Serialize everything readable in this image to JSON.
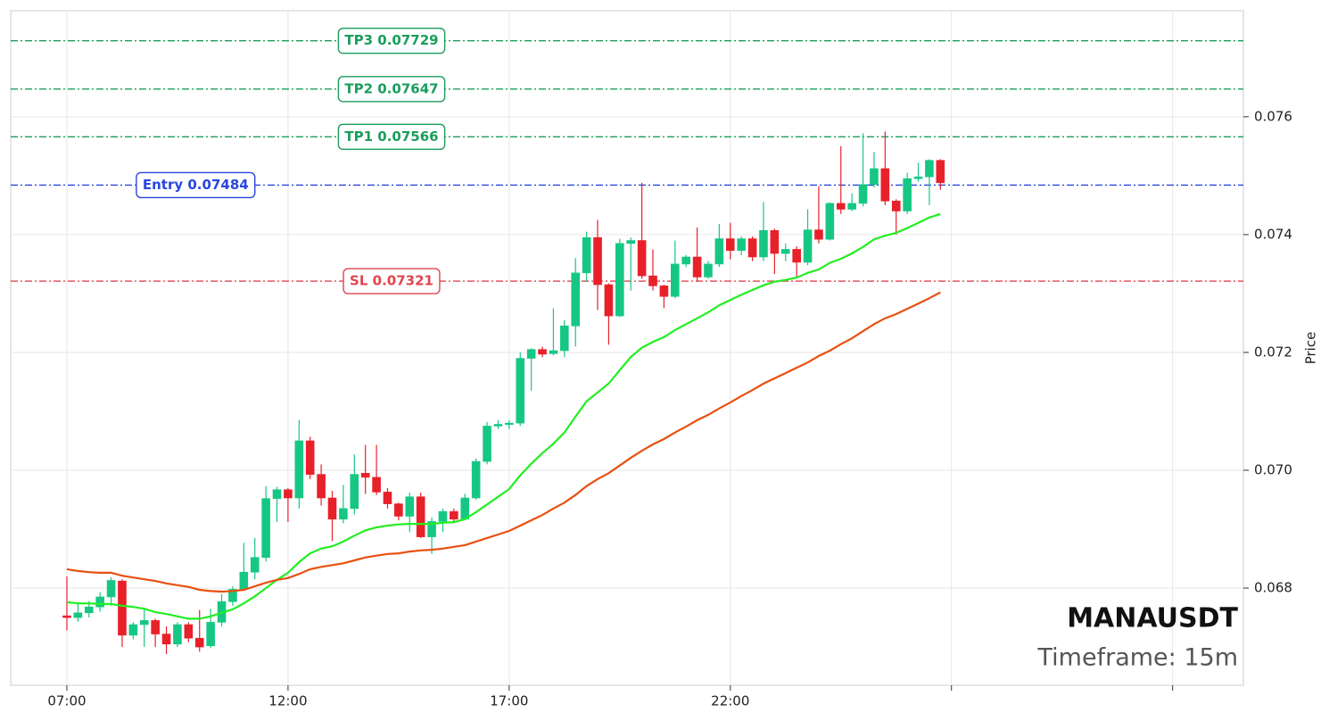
{
  "chart_data": {
    "type": "candlestick",
    "title": "MANAUSDT",
    "subtitle": "Timeframe: 15m",
    "y_label": "Price",
    "xlim": [
      -5.08,
      106.4
    ],
    "xticks": [
      {
        "value": 0,
        "label": "07:00"
      },
      {
        "value": 20,
        "label": "12:00"
      },
      {
        "value": 40,
        "label": "17:00"
      },
      {
        "value": 60,
        "label": "22:00"
      },
      {
        "value": 80,
        "label": null
      },
      {
        "value": 100,
        "label": null
      }
    ],
    "ylim": [
      0.06635,
      0.0778
    ],
    "yticks": [
      0.068,
      {
        "value": 0.07,
        "label": "0.070"
      },
      0.072,
      0.074,
      0.076
    ],
    "grid": true,
    "up_color": "#16c784",
    "down_color": "#e8202a",
    "open": [
      0.06753,
      0.0675,
      0.06758,
      0.06768,
      0.06785,
      0.06812,
      0.0672,
      0.06738,
      0.06745,
      0.06722,
      0.06705,
      0.06738,
      0.06715,
      0.06702,
      0.06742,
      0.06777,
      0.06798,
      0.06827,
      0.06852,
      0.06952,
      0.06967,
      0.06953,
      0.0705,
      0.06993,
      0.06953,
      0.06917,
      0.06935,
      0.06995,
      0.06988,
      0.06963,
      0.06943,
      0.06922,
      0.06955,
      0.06887,
      0.06913,
      0.0693,
      0.06917,
      0.06953,
      0.07015,
      0.07075,
      0.07078,
      0.0708,
      0.0719,
      0.07205,
      0.07198,
      0.07203,
      0.07245,
      0.07335,
      0.07395,
      0.07315,
      0.07262,
      0.07385,
      0.0739,
      0.0733,
      0.07313,
      0.07295,
      0.0735,
      0.07362,
      0.07328,
      0.0735,
      0.07393,
      0.07373,
      0.07393,
      0.07362,
      0.07407,
      0.07368,
      0.07375,
      0.07353,
      0.07408,
      0.07392,
      0.07453,
      0.07443,
      0.07453,
      0.07485,
      0.07512,
      0.07457,
      0.0744,
      0.07495,
      0.07498,
      0.07526
    ],
    "high": [
      0.0682,
      0.06776,
      0.06778,
      0.06793,
      0.06818,
      0.06815,
      0.06742,
      0.06765,
      0.06748,
      0.06735,
      0.06742,
      0.06742,
      0.06763,
      0.06765,
      0.0679,
      0.06803,
      0.06877,
      0.06885,
      0.06973,
      0.06972,
      0.0697,
      0.07085,
      0.07057,
      0.0701,
      0.06965,
      0.06975,
      0.07027,
      0.07043,
      0.07043,
      0.0697,
      0.06945,
      0.06962,
      0.06962,
      0.0692,
      0.06935,
      0.06935,
      0.0696,
      0.0702,
      0.07082,
      0.07085,
      0.07085,
      0.072,
      0.07207,
      0.0721,
      0.07275,
      0.07255,
      0.0736,
      0.07405,
      0.07425,
      0.07317,
      0.07393,
      0.07395,
      0.07488,
      0.07375,
      0.07315,
      0.0739,
      0.07365,
      0.07412,
      0.07355,
      0.07418,
      0.0742,
      0.07397,
      0.07397,
      0.07455,
      0.0741,
      0.07385,
      0.0738,
      0.07443,
      0.07482,
      0.07455,
      0.0755,
      0.0747,
      0.07572,
      0.0754,
      0.07575,
      0.0746,
      0.07505,
      0.07522,
      0.07528,
      0.07528
    ],
    "low": [
      0.06728,
      0.06743,
      0.0675,
      0.0676,
      0.0677,
      0.067,
      0.06713,
      0.067,
      0.067,
      0.06688,
      0.067,
      0.06708,
      0.06692,
      0.06698,
      0.06735,
      0.0677,
      0.06795,
      0.06815,
      0.06845,
      0.06912,
      0.06912,
      0.06935,
      0.06985,
      0.0694,
      0.0688,
      0.0691,
      0.06925,
      0.0696,
      0.06958,
      0.06935,
      0.06915,
      0.06895,
      0.06885,
      0.06858,
      0.06895,
      0.0691,
      0.06915,
      0.0695,
      0.0701,
      0.0707,
      0.0707,
      0.07075,
      0.07135,
      0.07192,
      0.07195,
      0.07192,
      0.0721,
      0.0732,
      0.07272,
      0.07213,
      0.0726,
      0.07305,
      0.07325,
      0.07305,
      0.07275,
      0.07292,
      0.07345,
      0.0732,
      0.07325,
      0.07345,
      0.07358,
      0.07365,
      0.07355,
      0.07355,
      0.07333,
      0.07355,
      0.07328,
      0.07348,
      0.07385,
      0.0739,
      0.07435,
      0.0744,
      0.07448,
      0.0748,
      0.0745,
      0.074,
      0.07435,
      0.0749,
      0.0745,
      0.07476
    ],
    "close": [
      0.0675,
      0.06758,
      0.06768,
      0.06785,
      0.06813,
      0.0672,
      0.06738,
      0.06745,
      0.06722,
      0.06705,
      0.06738,
      0.06715,
      0.067,
      0.06742,
      0.06777,
      0.06798,
      0.06827,
      0.06852,
      0.06952,
      0.06967,
      0.06953,
      0.0705,
      0.06993,
      0.06953,
      0.06917,
      0.06935,
      0.06993,
      0.06988,
      0.06963,
      0.06943,
      0.06922,
      0.06955,
      0.06887,
      0.06913,
      0.0693,
      0.06917,
      0.06953,
      0.07015,
      0.07075,
      0.07078,
      0.0708,
      0.0719,
      0.07205,
      0.07197,
      0.07203,
      0.07245,
      0.07335,
      0.07395,
      0.07315,
      0.07262,
      0.07385,
      0.0739,
      0.0733,
      0.07313,
      0.07295,
      0.0735,
      0.07362,
      0.07328,
      0.0735,
      0.07393,
      0.07373,
      0.07393,
      0.07362,
      0.07407,
      0.07368,
      0.07375,
      0.07353,
      0.07408,
      0.07392,
      0.07453,
      0.07443,
      0.07453,
      0.07485,
      0.07512,
      0.07457,
      0.0744,
      0.07495,
      0.07498,
      0.07526,
      0.07488
    ],
    "lines": [
      {
        "color": "#22ee22",
        "values": [
          0.06776,
          0.06774,
          0.06774,
          0.06773,
          0.06773,
          0.0677,
          0.06768,
          0.06765,
          0.06759,
          0.06756,
          0.06752,
          0.06748,
          0.06748,
          0.06752,
          0.06758,
          0.06764,
          0.06774,
          0.06786,
          0.068,
          0.06814,
          0.06826,
          0.06844,
          0.06859,
          0.06867,
          0.06871,
          0.06879,
          0.06889,
          0.06898,
          0.06903,
          0.06906,
          0.06908,
          0.06909,
          0.06909,
          0.06909,
          0.06911,
          0.06912,
          0.06917,
          0.06929,
          0.06942,
          0.06955,
          0.06968,
          0.06991,
          0.07011,
          0.07029,
          0.07045,
          0.07064,
          0.07091,
          0.07117,
          0.07132,
          0.07147,
          0.0717,
          0.07192,
          0.07208,
          0.07218,
          0.07226,
          0.07238,
          0.07248,
          0.07258,
          0.07268,
          0.0728,
          0.07289,
          0.07298,
          0.07306,
          0.07314,
          0.0732,
          0.07323,
          0.07327,
          0.07335,
          0.07341,
          0.07352,
          0.07359,
          0.07368,
          0.07379,
          0.07392,
          0.07398,
          0.07403,
          0.07411,
          0.0742,
          0.07429,
          0.07435
        ]
      },
      {
        "color": "#e8500f",
        "values": [
          0.06832,
          0.06829,
          0.06827,
          0.06826,
          0.06826,
          0.06821,
          0.06818,
          0.06815,
          0.06812,
          0.06808,
          0.06805,
          0.06802,
          0.06797,
          0.06795,
          0.06794,
          0.06795,
          0.06797,
          0.06803,
          0.06809,
          0.06814,
          0.06817,
          0.06824,
          0.06832,
          0.06836,
          0.06839,
          0.06842,
          0.06847,
          0.06852,
          0.06855,
          0.06858,
          0.06859,
          0.06862,
          0.06864,
          0.06865,
          0.06867,
          0.0687,
          0.06873,
          0.06879,
          0.06885,
          0.06891,
          0.06897,
          0.06906,
          0.06915,
          0.06924,
          0.06935,
          0.06945,
          0.06958,
          0.06973,
          0.06985,
          0.06995,
          0.07008,
          0.07021,
          0.07033,
          0.07044,
          0.07053,
          0.07064,
          0.07074,
          0.07085,
          0.07094,
          0.07105,
          0.07115,
          0.07126,
          0.07136,
          0.07147,
          0.07156,
          0.07165,
          0.07174,
          0.07183,
          0.07194,
          0.07203,
          0.07214,
          0.07224,
          0.07236,
          0.07248,
          0.07258,
          0.07265,
          0.07274,
          0.07283,
          0.07292,
          0.07302
        ]
      }
    ],
    "levels": [
      {
        "label": "TP3 0.07729",
        "value": 0.07729,
        "color": "#1a9e5c"
      },
      {
        "label": "TP2 0.07647",
        "value": 0.07647,
        "color": "#1a9e5c"
      },
      {
        "label": "TP1 0.07566",
        "value": 0.07566,
        "color": "#1a9e5c"
      },
      {
        "label": "Entry 0.07484",
        "value": 0.07484,
        "color": "#2946e0"
      },
      {
        "label": "SL 0.07321",
        "value": 0.07321,
        "color": "#e0454f"
      }
    ]
  }
}
